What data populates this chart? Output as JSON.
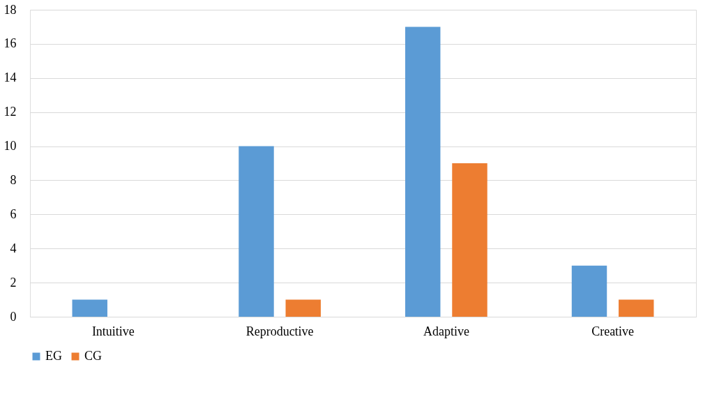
{
  "chart_data": {
    "type": "bar",
    "categories": [
      "Intuitive",
      "Reproductive",
      "Adaptive",
      "Creative"
    ],
    "series": [
      {
        "name": "EG",
        "color": "#5b9bd5",
        "values": [
          1,
          10,
          17,
          3
        ]
      },
      {
        "name": "CG",
        "color": "#ed7d31",
        "values": [
          0,
          1,
          9,
          1
        ]
      }
    ],
    "ylim": [
      0,
      18
    ],
    "yticks": [
      0,
      2,
      4,
      6,
      8,
      10,
      12,
      14,
      16,
      18
    ],
    "grid": "y",
    "legend": "bottom"
  }
}
